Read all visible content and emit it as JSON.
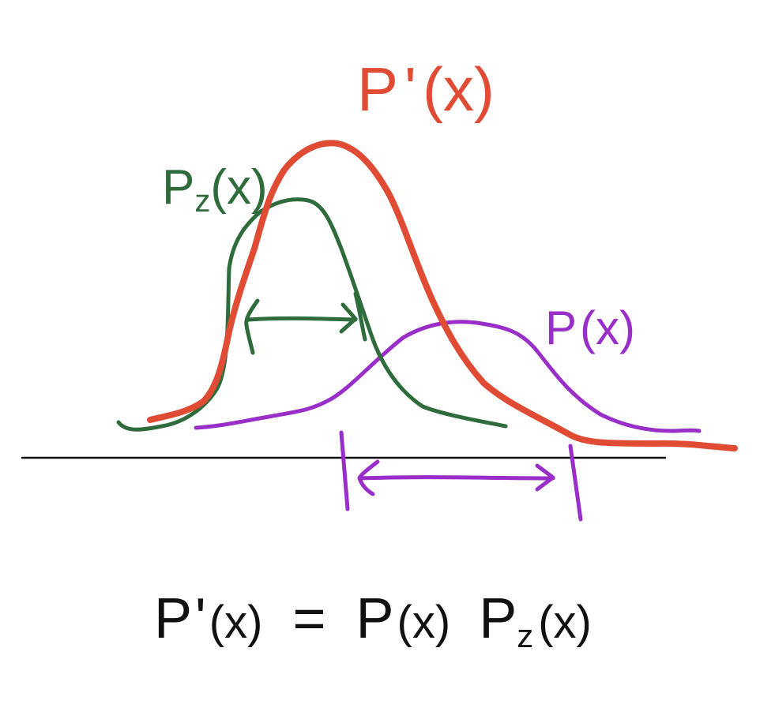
{
  "colors": {
    "prior": "#9a2ec8",
    "likelihood": "#2e6c3c",
    "posterior": "#e04b33",
    "axis": "#111111",
    "equation": "#111111"
  },
  "labels": {
    "posterior": {
      "main": "P",
      "prime": "'",
      "arg": "(x)"
    },
    "likelihood": {
      "main": "P",
      "sub": "z",
      "arg": "(x)"
    },
    "prior": {
      "main": "P",
      "arg": "(x)"
    }
  },
  "equation": {
    "lhs_main": "P",
    "lhs_prime": "'",
    "lhs_arg": "(x)",
    "equals": "=",
    "term1_main": "P",
    "term1_arg": "(x)",
    "term2_main": "P",
    "term2_sub": "z",
    "term2_arg": "(x)"
  }
}
